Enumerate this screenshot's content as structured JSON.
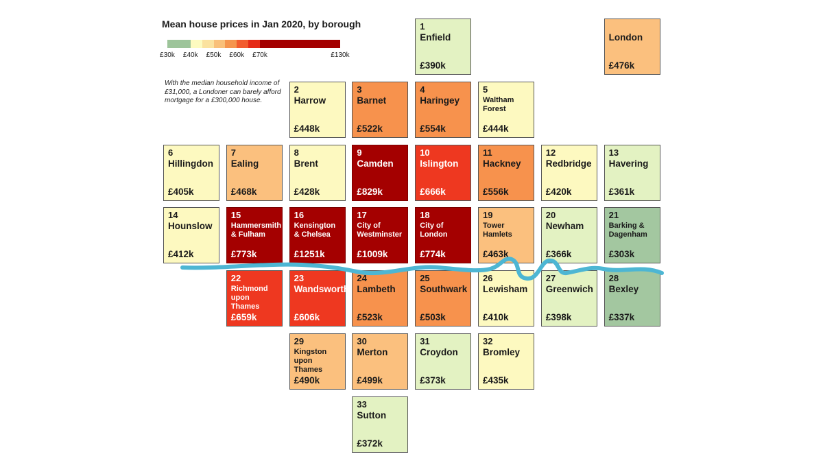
{
  "title": "Mean house prices in Jan 2020, by borough",
  "legend": {
    "segments": [
      {
        "color": "#9dc49a",
        "from": 30,
        "to": 40
      },
      {
        "color": "#fdfbc0",
        "from": 40,
        "to": 45
      },
      {
        "color": "#fbe29f",
        "from": 45,
        "to": 50
      },
      {
        "color": "#f9c07a",
        "from": 50,
        "to": 55
      },
      {
        "color": "#f5954e",
        "from": 55,
        "to": 60
      },
      {
        "color": "#f25c2e",
        "from": 60,
        "to": 65
      },
      {
        "color": "#e52a16",
        "from": 65,
        "to": 70
      },
      {
        "color": "#a40000",
        "from": 70,
        "to": 130
      }
    ],
    "ticks": [
      {
        "label": "£30k",
        "value": 30
      },
      {
        "label": "£40k",
        "value": 40
      },
      {
        "label": "£50k",
        "value": 50
      },
      {
        "label": "£60k",
        "value": 60
      },
      {
        "label": "£70k",
        "value": 70
      },
      {
        "label": "£130k",
        "value": 130
      }
    ]
  },
  "note": "With the median household income of £31,000, a Londoner can barely afford mortgage for a £300,000 house.",
  "chart_data": {
    "type": "heatmap",
    "title": "Mean house prices in Jan 2020, by borough",
    "unit": "£k",
    "tiles": [
      {
        "num": "1",
        "name": "Enfield",
        "price": "£390k",
        "value": 390,
        "color": "#e3f2c2",
        "row": 0,
        "col": 4
      },
      {
        "num": "",
        "name": "London",
        "price": "£476k",
        "value": 476,
        "color": "#fbc07e",
        "row": 0,
        "col": 7
      },
      {
        "num": "2",
        "name": "Harrow",
        "price": "£448k",
        "value": 448,
        "color": "#fdf9c0",
        "row": 1,
        "col": 2
      },
      {
        "num": "3",
        "name": "Barnet",
        "price": "£522k",
        "value": 522,
        "color": "#f7924d",
        "row": 1,
        "col": 3
      },
      {
        "num": "4",
        "name": "Haringey",
        "price": "£554k",
        "value": 554,
        "color": "#f7924d",
        "row": 1,
        "col": 4
      },
      {
        "num": "5",
        "name": "Waltham Forest",
        "price": "£444k",
        "value": 444,
        "color": "#fdf9c0",
        "row": 1,
        "col": 5
      },
      {
        "num": "6",
        "name": "Hillingdon",
        "price": "£405k",
        "value": 405,
        "color": "#fdf9c0",
        "row": 2,
        "col": 0
      },
      {
        "num": "7",
        "name": "Ealing",
        "price": "£468k",
        "value": 468,
        "color": "#fbc07e",
        "row": 2,
        "col": 1
      },
      {
        "num": "8",
        "name": "Brent",
        "price": "£428k",
        "value": 428,
        "color": "#fdf9c0",
        "row": 2,
        "col": 2
      },
      {
        "num": "9",
        "name": "Camden",
        "price": "£829k",
        "value": 829,
        "color": "#a40000",
        "row": 2,
        "col": 3
      },
      {
        "num": "10",
        "name": "Islington",
        "price": "£666k",
        "value": 666,
        "color": "#ee3820",
        "row": 2,
        "col": 4
      },
      {
        "num": "11",
        "name": "Hackney",
        "price": "£556k",
        "value": 556,
        "color": "#f7924d",
        "row": 2,
        "col": 5
      },
      {
        "num": "12",
        "name": "Redbridge",
        "price": "£420k",
        "value": 420,
        "color": "#fdf9c0",
        "row": 2,
        "col": 6
      },
      {
        "num": "13",
        "name": "Havering",
        "price": "£361k",
        "value": 361,
        "color": "#e3f2c2",
        "row": 2,
        "col": 7
      },
      {
        "num": "14",
        "name": "Hounslow",
        "price": "£412k",
        "value": 412,
        "color": "#fdf9c0",
        "row": 3,
        "col": 0
      },
      {
        "num": "15",
        "name": "Hammersmith & Fulham",
        "price": "£773k",
        "value": 773,
        "color": "#a40000",
        "row": 3,
        "col": 1
      },
      {
        "num": "16",
        "name": "Kensington & Chelsea",
        "price": "£1251k",
        "value": 1251,
        "color": "#a40000",
        "row": 3,
        "col": 2
      },
      {
        "num": "17",
        "name": "City of Westminster",
        "price": "£1009k",
        "value": 1009,
        "color": "#a40000",
        "row": 3,
        "col": 3
      },
      {
        "num": "18",
        "name": "City of London",
        "price": "£774k",
        "value": 774,
        "color": "#a40000",
        "row": 3,
        "col": 4
      },
      {
        "num": "19",
        "name": "Tower Hamlets",
        "price": "£463k",
        "value": 463,
        "color": "#fbc07e",
        "row": 3,
        "col": 5
      },
      {
        "num": "20",
        "name": "Newham",
        "price": "£366k",
        "value": 366,
        "color": "#e3f2c2",
        "row": 3,
        "col": 6
      },
      {
        "num": "21",
        "name": "Barking & Dagenham",
        "price": "£303k",
        "value": 303,
        "color": "#a3c7a0",
        "row": 3,
        "col": 7
      },
      {
        "num": "22",
        "name": "Richmond upon Thames",
        "price": "£659k",
        "value": 659,
        "color": "#ee3820",
        "row": 4,
        "col": 1
      },
      {
        "num": "23",
        "name": "Wandsworth",
        "price": "£606k",
        "value": 606,
        "color": "#ee3820",
        "row": 4,
        "col": 2
      },
      {
        "num": "24",
        "name": "Lambeth",
        "price": "£523k",
        "value": 523,
        "color": "#f7924d",
        "row": 4,
        "col": 3
      },
      {
        "num": "25",
        "name": "Southwark",
        "price": "£503k",
        "value": 503,
        "color": "#f7924d",
        "row": 4,
        "col": 4
      },
      {
        "num": "26",
        "name": "Lewisham",
        "price": "£410k",
        "value": 410,
        "color": "#fdf9c0",
        "row": 4,
        "col": 5
      },
      {
        "num": "27",
        "name": "Greenwich",
        "price": "£398k",
        "value": 398,
        "color": "#e3f2c2",
        "row": 4,
        "col": 6
      },
      {
        "num": "28",
        "name": "Bexley",
        "price": "£337k",
        "value": 337,
        "color": "#a3c7a0",
        "row": 4,
        "col": 7
      },
      {
        "num": "29",
        "name": "Kingston upon Thames",
        "price": "£490k",
        "value": 490,
        "color": "#fbc07e",
        "row": 5,
        "col": 2
      },
      {
        "num": "30",
        "name": "Merton",
        "price": "£499k",
        "value": 499,
        "color": "#fbc07e",
        "row": 5,
        "col": 3
      },
      {
        "num": "31",
        "name": "Croydon",
        "price": "£373k",
        "value": 373,
        "color": "#e3f2c2",
        "row": 5,
        "col": 4
      },
      {
        "num": "32",
        "name": "Bromley",
        "price": "£435k",
        "value": 435,
        "color": "#fdf9c0",
        "row": 5,
        "col": 5
      },
      {
        "num": "33",
        "name": "Sutton",
        "price": "£372k",
        "value": 372,
        "color": "#e3f2c2",
        "row": 6,
        "col": 3
      }
    ]
  },
  "river_color": "#4db6d3"
}
